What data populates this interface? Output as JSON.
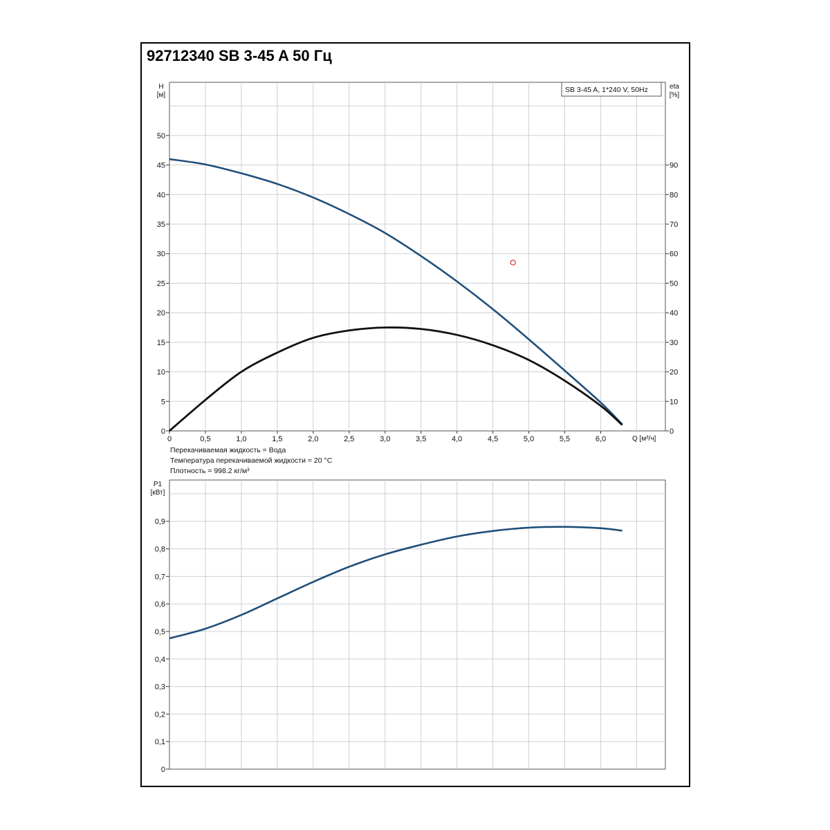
{
  "title": "92712340 SB 3-45 A 50 Гц",
  "legend": "SB 3-45 A, 1*240 V, 50Hz",
  "notes": [
    "Перекачиваемая жидкость = Вода",
    "Температура перекачиваемой жидкости = 20 °C",
    "Плотность = 998.2 кг/м³"
  ],
  "colors": {
    "head": "#1f4e79",
    "efficiency": "#111111",
    "power": "#1f4e79",
    "duty_point": "#e03030"
  },
  "chart_data": [
    {
      "type": "line",
      "xlabel": "Q [м³/ч]",
      "ylabel_left": [
        "H",
        "[м]"
      ],
      "ylabel_right": [
        "eta",
        "[%]"
      ],
      "xlim": [
        0,
        6.9
      ],
      "ylim_left": [
        0,
        59
      ],
      "ylim_right": [
        0,
        118
      ],
      "x_ticks": [
        "0",
        "0,5",
        "1,0",
        "1,5",
        "2,0",
        "2,5",
        "3,0",
        "3,5",
        "4,0",
        "4,5",
        "5,0",
        "5,5",
        "6,0"
      ],
      "y_ticks_left": [
        "0",
        "5",
        "10",
        "15",
        "20",
        "25",
        "30",
        "35",
        "40",
        "45",
        "50"
      ],
      "y_ticks_right": [
        "0",
        "10",
        "20",
        "30",
        "40",
        "50",
        "60",
        "70",
        "80",
        "90"
      ],
      "grid": true,
      "legend_position": "top-right",
      "series": [
        {
          "axis": "left",
          "x": [
            0,
            0.5,
            1.0,
            1.5,
            2.0,
            2.5,
            3.0,
            3.5,
            4.0,
            4.5,
            5.0,
            5.5,
            6.0,
            6.3
          ],
          "values": [
            46.0,
            45.1,
            43.6,
            41.8,
            39.5,
            36.7,
            33.5,
            29.6,
            25.3,
            20.6,
            15.5,
            10.2,
            4.8,
            1.1
          ]
        },
        {
          "axis": "right",
          "x": [
            0,
            0.5,
            1.0,
            1.5,
            2.0,
            2.5,
            3.0,
            3.5,
            4.0,
            4.5,
            5.0,
            5.5,
            6.0,
            6.3
          ],
          "values": [
            0,
            10.5,
            20.0,
            26.5,
            31.5,
            34.0,
            35.0,
            34.5,
            32.5,
            29.0,
            24.0,
            17.0,
            8.5,
            2.0
          ]
        }
      ],
      "markers": [
        {
          "x": 4.78,
          "y": 28.5
        }
      ]
    },
    {
      "type": "line",
      "xlabel": "",
      "ylabel": [
        "P1",
        "[кВт]"
      ],
      "xlim": [
        0,
        6.9
      ],
      "ylim": [
        0,
        1.05
      ],
      "y_ticks": [
        "0",
        "0,1",
        "0,2",
        "0,3",
        "0,4",
        "0,5",
        "0,6",
        "0,7",
        "0,8",
        "0,9"
      ],
      "grid": true,
      "series": [
        {
          "x": [
            0,
            0.5,
            1.0,
            1.5,
            2.0,
            2.5,
            3.0,
            3.5,
            4.0,
            4.5,
            5.0,
            5.5,
            6.0,
            6.3
          ],
          "values": [
            0.475,
            0.51,
            0.56,
            0.62,
            0.68,
            0.735,
            0.78,
            0.815,
            0.845,
            0.865,
            0.877,
            0.88,
            0.875,
            0.866
          ]
        }
      ]
    }
  ]
}
